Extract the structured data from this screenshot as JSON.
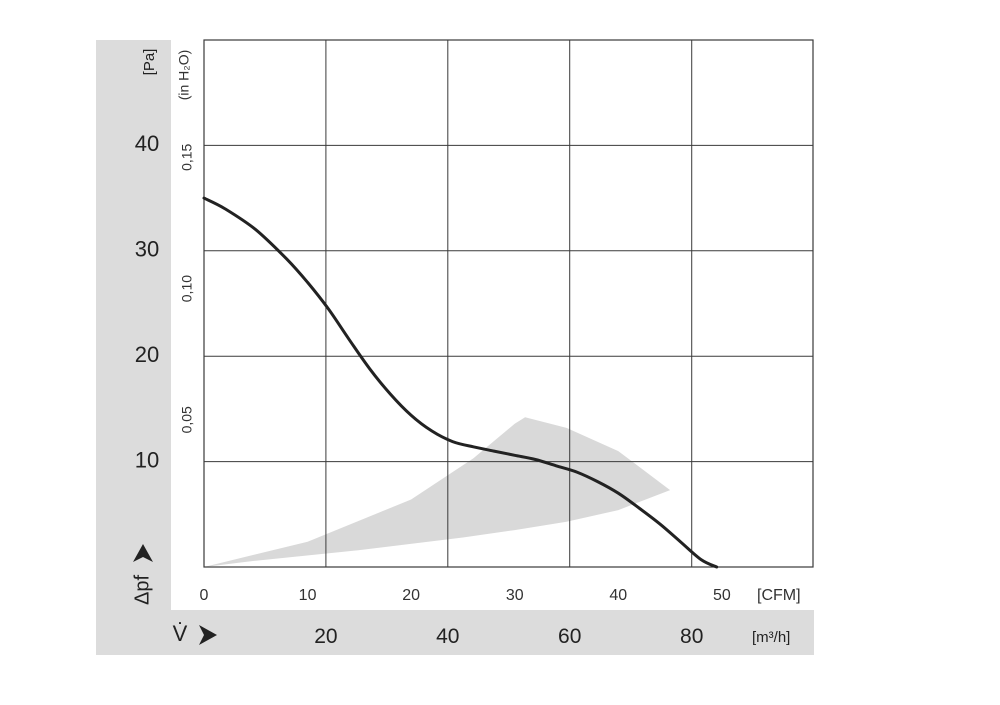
{
  "chart_data": {
    "type": "line",
    "x_axis_primary": {
      "unit_label": "[CFM]",
      "ticks": [
        "0",
        "10",
        "20",
        "30",
        "40",
        "50"
      ],
      "range": [
        0,
        58.8
      ]
    },
    "x_axis_secondary": {
      "label": "V̇",
      "unit_label": "[m³/h]",
      "ticks": [
        "20",
        "40",
        "60",
        "80"
      ],
      "tick_values_cfm": [
        11.77,
        23.54,
        35.31,
        47.09
      ]
    },
    "y_axis_primary": {
      "label": "Δpf",
      "unit_label": "[Pa]",
      "ticks": [
        "10",
        "20",
        "30",
        "40"
      ],
      "range": [
        0,
        50
      ]
    },
    "y_axis_secondary": {
      "unit_label": "(in H₂O)",
      "ticks": [
        "0,05",
        "0,10",
        "0,15"
      ],
      "tick_values_pa": [
        12.45,
        24.9,
        37.35
      ]
    },
    "grid": true,
    "series": [
      {
        "x": [
          0,
          2,
          5,
          8,
          10,
          12,
          14,
          16,
          18,
          20,
          22,
          24,
          26,
          28,
          30,
          32,
          34,
          36,
          38,
          40,
          42,
          44,
          46,
          48,
          49.5
        ],
        "y": [
          35,
          34,
          32,
          29.2,
          27,
          24.5,
          21.6,
          18.8,
          16.4,
          14.4,
          12.9,
          11.9,
          11.4,
          11,
          10.6,
          10.2,
          9.6,
          9.0,
          8.1,
          7.0,
          5.6,
          4.1,
          2.4,
          0.7,
          0
        ]
      }
    ],
    "operating_region": {
      "x": [
        0,
        10,
        20,
        26,
        30,
        31,
        35,
        40,
        45,
        40,
        35,
        30,
        25,
        15,
        5,
        0
      ],
      "y": [
        0,
        2.4,
        6.4,
        10.3,
        13.6,
        14.2,
        13.2,
        11.0,
        7.3,
        5.4,
        4.3,
        3.5,
        2.8,
        1.6,
        0.6,
        0
      ],
      "color": "#d9d9d9"
    },
    "colors": {
      "curve": "#222222",
      "grid": "#3a3a3a",
      "panel": "#dcdcdc",
      "text": "#222222"
    }
  }
}
